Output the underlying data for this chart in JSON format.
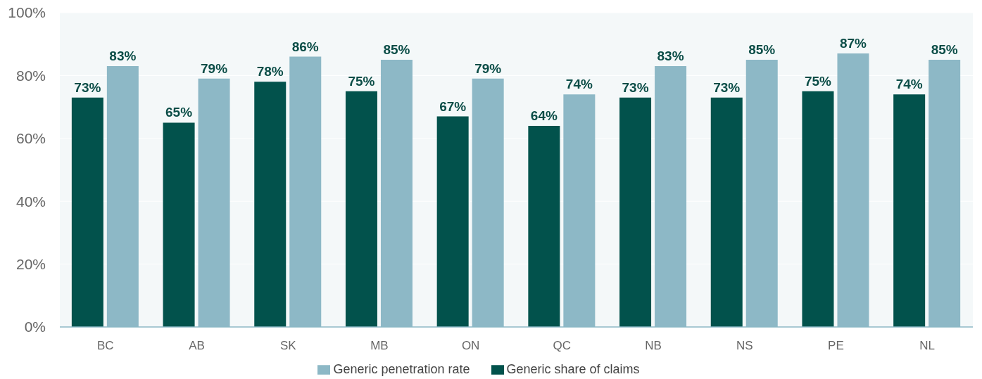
{
  "chart_data": {
    "type": "bar",
    "categories": [
      "BC",
      "AB",
      "SK",
      "MB",
      "ON",
      "QC",
      "NB",
      "NS",
      "PE",
      "NL"
    ],
    "series": [
      {
        "name": "Generic share of claims",
        "color": "#02524c",
        "values": [
          73,
          65,
          78,
          75,
          67,
          64,
          73,
          73,
          75,
          74
        ],
        "value_labels": [
          "73%",
          "65%",
          "78%",
          "75%",
          "67%",
          "64%",
          "73%",
          "73%",
          "75%",
          "74%"
        ]
      },
      {
        "name": "Generic penetration rate",
        "color": "#8db8c6",
        "values": [
          83,
          79,
          86,
          85,
          79,
          74,
          83,
          85,
          87,
          85
        ],
        "value_labels": [
          "83%",
          "79%",
          "86%",
          "85%",
          "79%",
          "74%",
          "83%",
          "85%",
          "87%",
          "85%"
        ]
      }
    ],
    "ylim": [
      0,
      100
    ],
    "yticks": [
      {
        "value": 0,
        "label": "0%"
      },
      {
        "value": 20,
        "label": "20%"
      },
      {
        "value": 40,
        "label": "40%"
      },
      {
        "value": 60,
        "label": "60%"
      },
      {
        "value": 80,
        "label": "80%"
      },
      {
        "value": 100,
        "label": "100%"
      }
    ],
    "grid": "y",
    "legend": "bottom"
  }
}
